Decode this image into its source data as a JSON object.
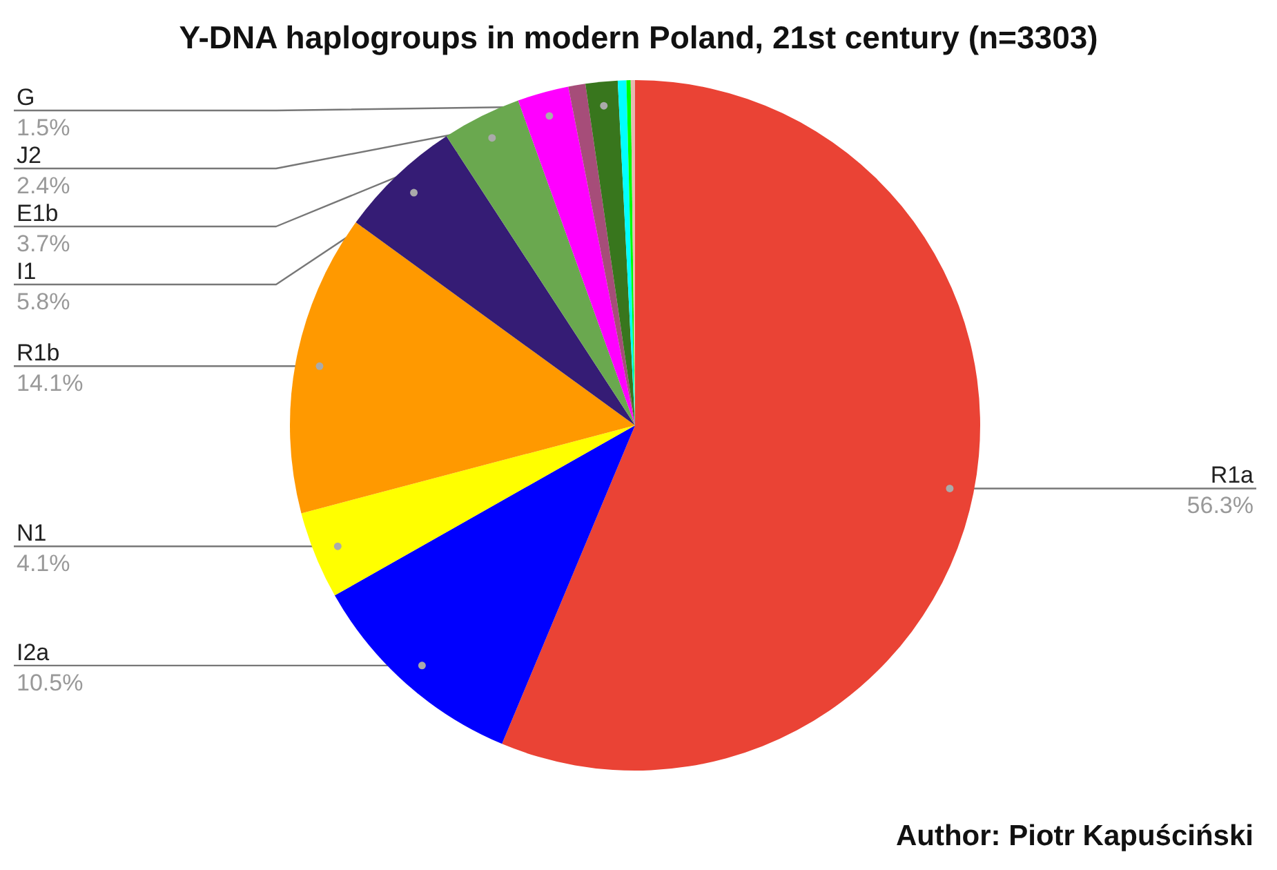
{
  "chart_data": {
    "type": "pie",
    "title": "Y-DNA haplogroups in modern Poland, 21st century (n=3303)",
    "annotations": [
      "Author: Piotr Kapuściński"
    ],
    "categories": [
      "R1a",
      "I2a",
      "N1",
      "R1b",
      "I1",
      "E1b",
      "J2",
      null,
      "G",
      null,
      null,
      null
    ],
    "values": [
      56.3,
      10.5,
      4.1,
      14.1,
      5.8,
      3.7,
      2.4,
      0.8,
      1.5,
      0.4,
      0.2,
      0.2
    ],
    "value_labels": [
      "56.3%",
      "10.5%",
      "4.1%",
      "14.1%",
      "5.8%",
      "3.7%",
      "2.4%",
      null,
      "1.5%",
      null,
      null,
      null
    ],
    "colors": [
      "#ea4335",
      "#0000ff",
      "#ffff00",
      "#ff9900",
      "#351c75",
      "#6aa84f",
      "#ff00ff",
      "#a64d79",
      "#38761d",
      "#00ffff",
      "#00ff00",
      "#e6b8af"
    ]
  }
}
